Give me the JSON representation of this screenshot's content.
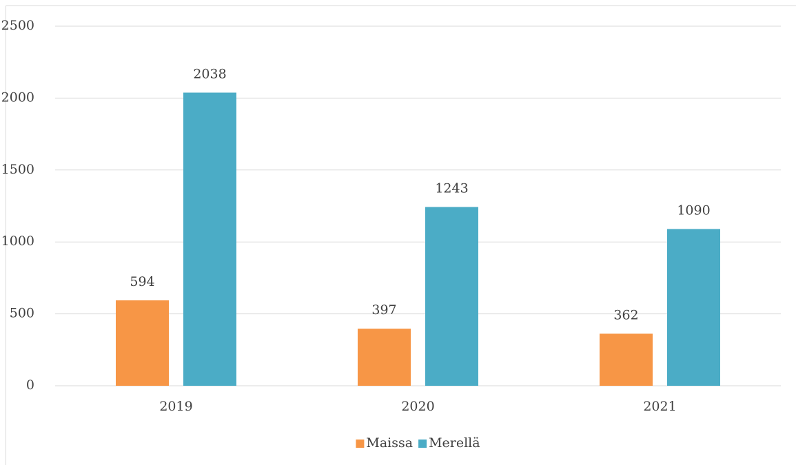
{
  "chart_data": {
    "type": "bar",
    "categories": [
      "2019",
      "2020",
      "2021"
    ],
    "series": [
      {
        "name": "Maissa",
        "color": "#f79646",
        "values": [
          594,
          397,
          362
        ]
      },
      {
        "name": "Merellä",
        "color": "#4bacc6",
        "values": [
          2038,
          1243,
          1090
        ]
      }
    ],
    "ylim": [
      0,
      2500
    ],
    "yticks": [
      0,
      500,
      1000,
      1500,
      2000,
      2500
    ],
    "grid": true,
    "legend": "bottom"
  }
}
